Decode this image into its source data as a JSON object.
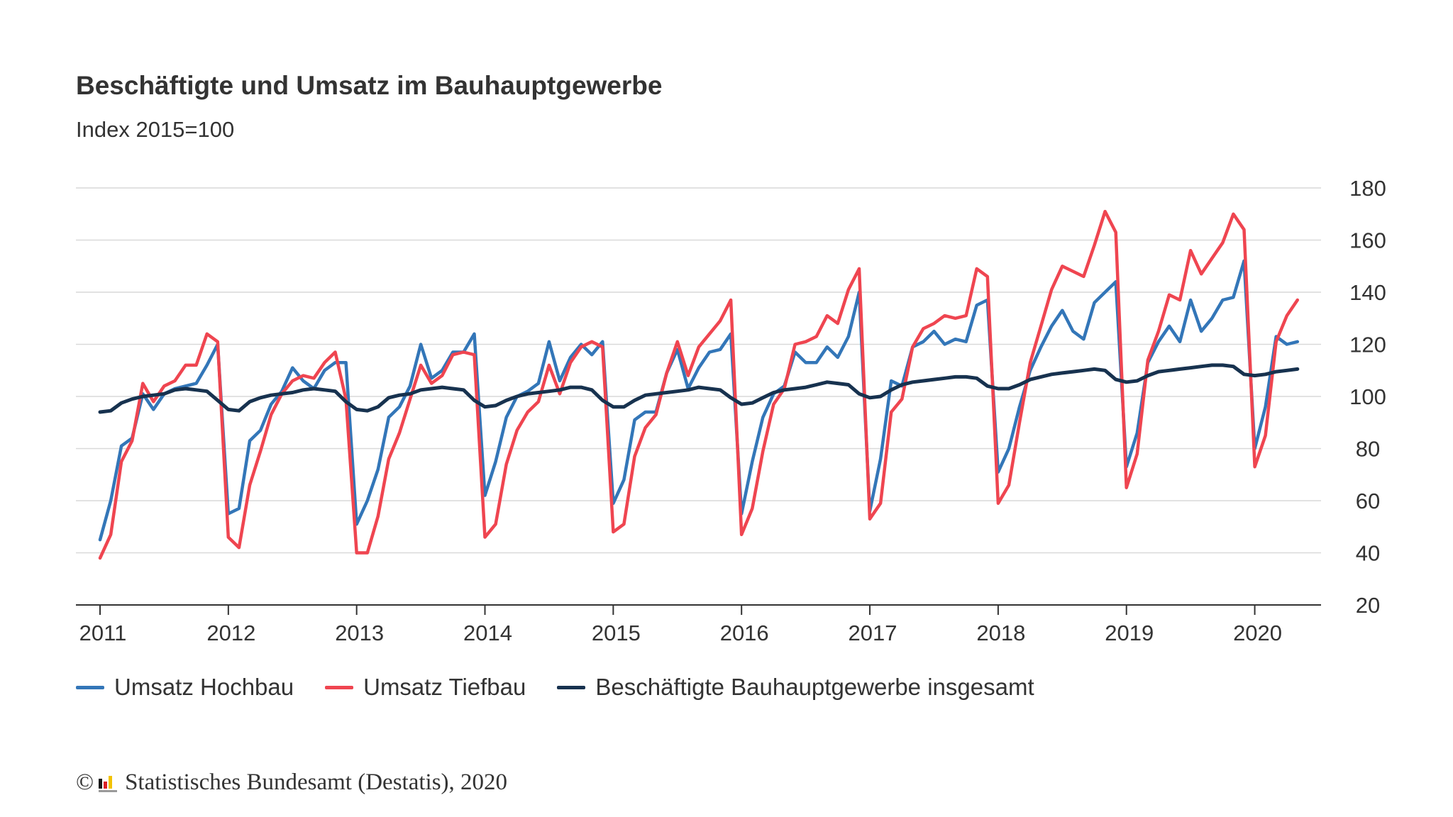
{
  "chart_data": {
    "type": "line",
    "title": "Beschäftigte und Umsatz im Bauhauptgewerbe",
    "subtitle": "Index 2015=100",
    "xlabel": "",
    "ylabel": "",
    "ylim": [
      20,
      180
    ],
    "yticks": [
      20,
      40,
      60,
      80,
      100,
      120,
      140,
      160,
      180
    ],
    "xticks": [
      "2011",
      "2012",
      "2013",
      "2014",
      "2015",
      "2016",
      "2017",
      "2018",
      "2019",
      "2020"
    ],
    "x_start": "2011-01",
    "frequency": "monthly",
    "grid": true,
    "legend_position": "bottom",
    "series": [
      {
        "name": "Umsatz Hochbau",
        "color": "#3376b8",
        "values": [
          45,
          60,
          81,
          84,
          101,
          95,
          101,
          103,
          104,
          105,
          112,
          120,
          55,
          57,
          83,
          87,
          97,
          102,
          111,
          106,
          103,
          110,
          113,
          113,
          51,
          60,
          72,
          92,
          96,
          104,
          120,
          107,
          110,
          117,
          117,
          124,
          62,
          75,
          92,
          100,
          102,
          105,
          121,
          106,
          115,
          120,
          116,
          121,
          59,
          68,
          91,
          94,
          94,
          109,
          118,
          103,
          111,
          117,
          118,
          124,
          55,
          75,
          92,
          101,
          104,
          117,
          113,
          113,
          119,
          115,
          123,
          140,
          56,
          76,
          106,
          104,
          119,
          121,
          125,
          120,
          122,
          121,
          135,
          137,
          71,
          80,
          96,
          110,
          119,
          127,
          133,
          125,
          122,
          136,
          140,
          144,
          73,
          86,
          113,
          121,
          127,
          121,
          137,
          125,
          130,
          137,
          138,
          152,
          80,
          96,
          123,
          120,
          121
        ]
      },
      {
        "name": "Umsatz Tiefbau",
        "color": "#ef4550",
        "values": [
          38,
          47,
          75,
          83,
          105,
          98,
          104,
          106,
          112,
          112,
          124,
          121,
          46,
          42,
          66,
          79,
          93,
          101,
          106,
          108,
          107,
          113,
          117,
          99,
          40,
          40,
          54,
          76,
          86,
          99,
          112,
          105,
          108,
          116,
          117,
          116,
          46,
          51,
          74,
          87,
          94,
          98,
          112,
          101,
          113,
          119,
          121,
          119,
          48,
          51,
          77,
          88,
          93,
          109,
          121,
          108,
          119,
          124,
          129,
          137,
          47,
          57,
          79,
          97,
          103,
          120,
          121,
          123,
          131,
          128,
          141,
          149,
          53,
          59,
          94,
          99,
          119,
          126,
          128,
          131,
          130,
          131,
          149,
          146,
          59,
          66,
          90,
          113,
          127,
          141,
          150,
          148,
          146,
          158,
          171,
          163,
          65,
          78,
          114,
          125,
          139,
          137,
          156,
          147,
          153,
          159,
          170,
          164,
          73,
          85,
          121,
          131,
          137
        ]
      },
      {
        "name": "Beschäftigte Bauhauptgewerbe insgesamt",
        "color": "#17324f",
        "values": [
          94,
          94.5,
          97.5,
          99,
          100,
          100.5,
          101,
          102.5,
          103,
          102.5,
          102,
          98.5,
          95,
          94.5,
          98,
          99.5,
          100.5,
          101,
          101.5,
          102.5,
          103,
          102.5,
          102,
          98,
          95,
          94.5,
          96,
          99.5,
          100.5,
          101,
          102.5,
          103,
          103.5,
          103,
          102.5,
          98.5,
          96,
          96.5,
          98.5,
          100,
          101,
          101.5,
          102,
          102.5,
          103.5,
          103.5,
          102.5,
          98.5,
          96,
          96,
          98.5,
          100.5,
          101,
          101.5,
          102,
          102.5,
          103.5,
          103,
          102.5,
          99.5,
          97,
          97.5,
          99.5,
          101.5,
          102.5,
          103,
          103.5,
          104.5,
          105.5,
          105,
          104.5,
          101,
          99.5,
          100,
          102.5,
          104.5,
          105.5,
          106,
          106.5,
          107,
          107.5,
          107.5,
          107,
          104,
          103,
          103,
          104.5,
          106.5,
          107.5,
          108.5,
          109,
          109.5,
          110,
          110.5,
          110,
          106.5,
          105.5,
          106,
          108,
          109.5,
          110,
          110.5,
          111,
          111.5,
          112,
          112,
          111.5,
          108.5,
          108,
          108.5,
          109.5,
          110,
          110.5
        ]
      }
    ]
  },
  "source": {
    "copyright_symbol": "©",
    "text": "Statistisches Bundesamt (Destatis), 2020"
  }
}
